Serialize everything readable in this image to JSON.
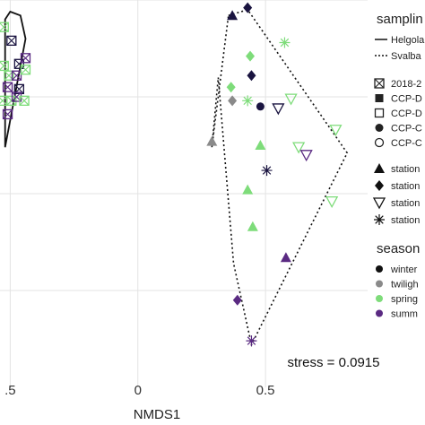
{
  "chart_data": {
    "type": "scatter",
    "xlabel": "NMDS1",
    "ylabel": "",
    "x_ticks": [
      -0.5,
      0,
      0.5
    ],
    "x_tick_labels": [
      ".5",
      "0",
      "0.5"
    ],
    "xlim": [
      -0.54,
      0.9
    ],
    "ylim": [
      -0.5,
      0.5
    ],
    "y_gridlines": [
      -0.25,
      0.0,
      0.25,
      0.5
    ],
    "grid": true,
    "stress_label": "stress = 0.0915",
    "legend_position": "right",
    "legend": {
      "sampling_title": "samplin",
      "sampling_entries": [
        {
          "label": "Helgola",
          "line": "solid"
        },
        {
          "label": "Svalba",
          "line": "dotted"
        }
      ],
      "shape_entries": [
        {
          "label": "2018-2",
          "shape": "boxcross"
        },
        {
          "label": "CCP-D",
          "shape": "square"
        },
        {
          "label": "CCP-D",
          "shape": "square-open"
        },
        {
          "label": "CCP-C",
          "shape": "circle"
        },
        {
          "label": "CCP-C",
          "shape": "circle-open"
        }
      ],
      "station_entries": [
        {
          "label": "station",
          "shape": "triangle"
        },
        {
          "label": "station",
          "shape": "diamond"
        },
        {
          "label": "station",
          "shape": "triangle-down-open"
        },
        {
          "label": "station",
          "shape": "asterisk"
        }
      ],
      "season_title": "season",
      "season_entries": [
        {
          "label": "winter",
          "color": "#111111"
        },
        {
          "label": "twiligh",
          "color": "#8a8a8a"
        },
        {
          "label": "spring",
          "color": "#7edc7a"
        },
        {
          "label": "summ",
          "color": "#5a2a82"
        }
      ]
    },
    "colors": {
      "winter": "#1a1440",
      "twilight": "#8a8a8a",
      "spring": "#7edc7a",
      "summer": "#5a2a82"
    },
    "hulls": [
      {
        "group": "Helgoland",
        "line": "solid",
        "points": [
          [
            -0.52,
            0.45
          ],
          [
            -0.5,
            0.47
          ],
          [
            -0.46,
            0.46
          ],
          [
            -0.44,
            0.4
          ],
          [
            -0.52,
            0.12
          ]
        ]
      },
      {
        "group": "Svalbard",
        "line": "dotted",
        "points": [
          [
            0.355,
            0.46
          ],
          [
            0.43,
            0.475
          ],
          [
            0.82,
            0.105
          ],
          [
            0.445,
            -0.39
          ],
          [
            0.375,
            -0.18
          ],
          [
            0.315,
            0.3
          ],
          [
            0.29,
            0.12
          ]
        ]
      }
    ],
    "series": [
      {
        "group": "Helgoland",
        "shape": "boxcross",
        "points": [
          {
            "x": -0.525,
            "y": 0.43,
            "season": "spring"
          },
          {
            "x": -0.495,
            "y": 0.395,
            "season": "winter"
          },
          {
            "x": -0.525,
            "y": 0.33,
            "season": "spring"
          },
          {
            "x": -0.505,
            "y": 0.305,
            "season": "spring"
          },
          {
            "x": -0.465,
            "y": 0.335,
            "season": "winter"
          },
          {
            "x": -0.44,
            "y": 0.35,
            "season": "summer"
          },
          {
            "x": -0.475,
            "y": 0.305,
            "season": "summer"
          },
          {
            "x": -0.44,
            "y": 0.32,
            "season": "spring"
          },
          {
            "x": -0.51,
            "y": 0.275,
            "season": "summer"
          },
          {
            "x": -0.465,
            "y": 0.27,
            "season": "winter"
          },
          {
            "x": -0.53,
            "y": 0.24,
            "season": "spring"
          },
          {
            "x": -0.495,
            "y": 0.24,
            "season": "spring"
          },
          {
            "x": -0.475,
            "y": 0.25,
            "season": "summer"
          },
          {
            "x": -0.445,
            "y": 0.24,
            "season": "spring"
          },
          {
            "x": -0.51,
            "y": 0.205,
            "season": "summer"
          }
        ]
      },
      {
        "group": "Svalbard",
        "shape": "triangle",
        "points": [
          {
            "x": 0.37,
            "y": 0.46,
            "season": "winter"
          },
          {
            "x": 0.29,
            "y": 0.135,
            "season": "twilight"
          },
          {
            "x": 0.48,
            "y": 0.125,
            "season": "spring"
          },
          {
            "x": 0.43,
            "y": 0.01,
            "season": "spring"
          },
          {
            "x": 0.45,
            "y": -0.085,
            "season": "spring"
          },
          {
            "x": 0.58,
            "y": -0.165,
            "season": "summer"
          }
        ]
      },
      {
        "group": "Svalbard",
        "shape": "diamond",
        "points": [
          {
            "x": 0.43,
            "y": 0.48,
            "season": "winter"
          },
          {
            "x": 0.44,
            "y": 0.355,
            "season": "spring"
          },
          {
            "x": 0.445,
            "y": 0.305,
            "season": "winter"
          },
          {
            "x": 0.365,
            "y": 0.275,
            "season": "spring"
          },
          {
            "x": 0.37,
            "y": 0.24,
            "season": "twilight"
          },
          {
            "x": 0.39,
            "y": -0.275,
            "season": "summer"
          }
        ]
      },
      {
        "group": "Svalbard",
        "shape": "circle",
        "points": [
          {
            "x": 0.48,
            "y": 0.225,
            "season": "winter"
          }
        ]
      },
      {
        "group": "Svalbard",
        "shape": "triangle-down-open",
        "points": [
          {
            "x": 0.55,
            "y": 0.22,
            "season": "winter"
          },
          {
            "x": 0.6,
            "y": 0.245,
            "season": "spring"
          },
          {
            "x": 0.63,
            "y": 0.12,
            "season": "spring"
          },
          {
            "x": 0.66,
            "y": 0.1,
            "season": "summer"
          },
          {
            "x": 0.775,
            "y": 0.165,
            "season": "spring"
          },
          {
            "x": 0.76,
            "y": -0.02,
            "season": "spring"
          }
        ]
      },
      {
        "group": "Svalbard",
        "shape": "asterisk",
        "points": [
          {
            "x": 0.575,
            "y": 0.39,
            "season": "spring"
          },
          {
            "x": 0.43,
            "y": 0.24,
            "season": "spring"
          },
          {
            "x": 0.505,
            "y": 0.06,
            "season": "winter"
          },
          {
            "x": 0.445,
            "y": -0.38,
            "season": "summer"
          }
        ]
      }
    ]
  }
}
